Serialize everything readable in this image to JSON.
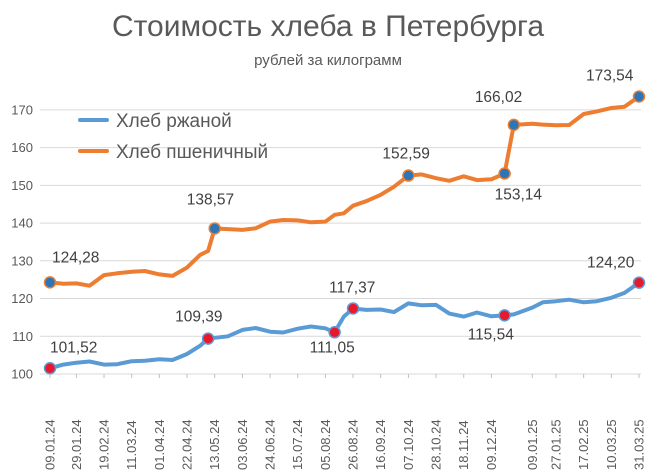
{
  "chart_data": {
    "type": "line",
    "title": "Стоимость хлеба в Петербурга",
    "subtitle": "рублей за килограмм",
    "xlabel": "",
    "ylabel": "",
    "ylim": [
      100,
      175
    ],
    "yticks": [
      100,
      110,
      120,
      130,
      140,
      150,
      160,
      170
    ],
    "grid": true,
    "legend_position": "top-left",
    "x_tick_labels": [
      "09.01.24",
      "29.01.24",
      "19.02.24",
      "11.03.24",
      "01.04.24",
      "22.04.24",
      "13.05.24",
      "03.06.24",
      "24.06.24",
      "15.07.24",
      "05.08.24",
      "26.08.24",
      "16.09.24",
      "07.10.24",
      "28.10.24",
      "18.11.24",
      "09.12.24",
      "09.01.25",
      "27.01.25",
      "17.02.25",
      "10.03.25",
      "31.03.25"
    ],
    "series": [
      {
        "name": "Хлеб ржаной",
        "color": "#5b9bd5",
        "points": [
          {
            "x": "09.01.24",
            "y": 101.52
          },
          {
            "x": "19.01.24",
            "y": 102.5
          },
          {
            "x": "29.01.24",
            "y": 103.0
          },
          {
            "x": "08.02.24",
            "y": 103.3
          },
          {
            "x": "19.02.24",
            "y": 102.5
          },
          {
            "x": "29.02.24",
            "y": 102.6
          },
          {
            "x": "11.03.24",
            "y": 103.4
          },
          {
            "x": "21.03.24",
            "y": 103.5
          },
          {
            "x": "01.04.24",
            "y": 103.9
          },
          {
            "x": "11.04.24",
            "y": 103.7
          },
          {
            "x": "22.04.24",
            "y": 105.3
          },
          {
            "x": "02.05.24",
            "y": 107.5
          },
          {
            "x": "08.05.24",
            "y": 109.39
          },
          {
            "x": "13.05.24",
            "y": 109.6
          },
          {
            "x": "23.05.24",
            "y": 110.0
          },
          {
            "x": "03.06.24",
            "y": 111.7
          },
          {
            "x": "13.06.24",
            "y": 112.2
          },
          {
            "x": "24.06.24",
            "y": 111.2
          },
          {
            "x": "04.07.24",
            "y": 111.0
          },
          {
            "x": "15.07.24",
            "y": 112.0
          },
          {
            "x": "25.07.24",
            "y": 112.6
          },
          {
            "x": "05.08.24",
            "y": 112.1
          },
          {
            "x": "12.08.24",
            "y": 111.05
          },
          {
            "x": "19.08.24",
            "y": 115.2
          },
          {
            "x": "26.08.24",
            "y": 117.37
          },
          {
            "x": "05.09.24",
            "y": 117.0
          },
          {
            "x": "16.09.24",
            "y": 117.1
          },
          {
            "x": "26.09.24",
            "y": 116.4
          },
          {
            "x": "07.10.24",
            "y": 118.7
          },
          {
            "x": "17.10.24",
            "y": 118.2
          },
          {
            "x": "28.10.24",
            "y": 118.3
          },
          {
            "x": "07.11.24",
            "y": 116.0
          },
          {
            "x": "18.11.24",
            "y": 115.2
          },
          {
            "x": "28.11.24",
            "y": 116.3
          },
          {
            "x": "09.12.24",
            "y": 115.3
          },
          {
            "x": "19.12.24",
            "y": 115.54
          },
          {
            "x": "26.12.24",
            "y": 115.8
          },
          {
            "x": "09.01.25",
            "y": 117.6
          },
          {
            "x": "17.01.25",
            "y": 119.0
          },
          {
            "x": "27.01.25",
            "y": 119.3
          },
          {
            "x": "06.02.25",
            "y": 119.7
          },
          {
            "x": "17.02.25",
            "y": 119.0
          },
          {
            "x": "27.02.25",
            "y": 119.3
          },
          {
            "x": "10.03.25",
            "y": 120.2
          },
          {
            "x": "20.03.25",
            "y": 121.5
          },
          {
            "x": "31.03.25",
            "y": 124.2
          }
        ]
      },
      {
        "name": "Хлеб пшеничный",
        "color": "#ed7d31",
        "points": [
          {
            "x": "09.01.24",
            "y": 124.28
          },
          {
            "x": "19.01.24",
            "y": 123.9
          },
          {
            "x": "29.01.24",
            "y": 124.0
          },
          {
            "x": "08.02.24",
            "y": 123.4
          },
          {
            "x": "19.02.24",
            "y": 126.2
          },
          {
            "x": "29.02.24",
            "y": 126.7
          },
          {
            "x": "11.03.24",
            "y": 127.1
          },
          {
            "x": "21.03.24",
            "y": 127.3
          },
          {
            "x": "01.04.24",
            "y": 126.4
          },
          {
            "x": "11.04.24",
            "y": 126.0
          },
          {
            "x": "22.04.24",
            "y": 128.2
          },
          {
            "x": "02.05.24",
            "y": 131.6
          },
          {
            "x": "08.05.24",
            "y": 132.6
          },
          {
            "x": "13.05.24",
            "y": 138.57
          },
          {
            "x": "23.05.24",
            "y": 138.4
          },
          {
            "x": "03.06.24",
            "y": 138.2
          },
          {
            "x": "13.06.24",
            "y": 138.6
          },
          {
            "x": "24.06.24",
            "y": 140.4
          },
          {
            "x": "04.07.24",
            "y": 140.8
          },
          {
            "x": "15.07.24",
            "y": 140.7
          },
          {
            "x": "25.07.24",
            "y": 140.2
          },
          {
            "x": "05.08.24",
            "y": 140.4
          },
          {
            "x": "12.08.24",
            "y": 142.2
          },
          {
            "x": "19.08.24",
            "y": 142.6
          },
          {
            "x": "26.08.24",
            "y": 144.6
          },
          {
            "x": "05.09.24",
            "y": 145.8
          },
          {
            "x": "16.09.24",
            "y": 147.5
          },
          {
            "x": "26.09.24",
            "y": 149.6
          },
          {
            "x": "07.10.24",
            "y": 152.59
          },
          {
            "x": "17.10.24",
            "y": 152.9
          },
          {
            "x": "28.10.24",
            "y": 151.9
          },
          {
            "x": "07.11.24",
            "y": 151.2
          },
          {
            "x": "18.11.24",
            "y": 152.4
          },
          {
            "x": "28.11.24",
            "y": 151.4
          },
          {
            "x": "09.12.24",
            "y": 151.6
          },
          {
            "x": "19.12.24",
            "y": 153.14
          },
          {
            "x": "26.12.24",
            "y": 166.02
          },
          {
            "x": "09.01.25",
            "y": 166.3
          },
          {
            "x": "17.01.25",
            "y": 166.1
          },
          {
            "x": "27.01.25",
            "y": 165.9
          },
          {
            "x": "06.02.25",
            "y": 166.0
          },
          {
            "x": "17.02.25",
            "y": 168.9
          },
          {
            "x": "27.02.25",
            "y": 169.6
          },
          {
            "x": "10.03.25",
            "y": 170.5
          },
          {
            "x": "20.03.25",
            "y": 170.8
          },
          {
            "x": "31.03.25",
            "y": 173.54
          }
        ]
      }
    ],
    "annotations": [
      {
        "series": "Хлеб ржаной",
        "x": "09.01.24",
        "label": "101,52",
        "marker_color": "#e8192c"
      },
      {
        "series": "Хлеб ржаной",
        "x": "08.05.24",
        "label": "109,39",
        "marker_color": "#e8192c"
      },
      {
        "series": "Хлеб ржаной",
        "x": "12.08.24",
        "label": "111,05",
        "marker_color": "#e8192c"
      },
      {
        "series": "Хлеб ржаной",
        "x": "26.08.24",
        "label": "117,37",
        "marker_color": "#e8192c"
      },
      {
        "series": "Хлеб ржаной",
        "x": "19.12.24",
        "label": "115,54",
        "marker_color": "#e8192c"
      },
      {
        "series": "Хлеб ржаной",
        "x": "31.03.25",
        "label": "124,20",
        "marker_color": "#e8192c"
      },
      {
        "series": "Хлеб пшеничный",
        "x": "09.01.24",
        "label": "124,28",
        "marker_color": "#2e75b6"
      },
      {
        "series": "Хлеб пшеничный",
        "x": "13.05.24",
        "label": "138,57",
        "marker_color": "#2e75b6"
      },
      {
        "series": "Хлеб пшеничный",
        "x": "07.10.24",
        "label": "152,59",
        "marker_color": "#2e75b6"
      },
      {
        "series": "Хлеб пшеничный",
        "x": "19.12.24",
        "label": "153,14",
        "marker_color": "#2e75b6"
      },
      {
        "series": "Хлеб пшеничный",
        "x": "26.12.24",
        "label": "166,02",
        "marker_color": "#2e75b6"
      },
      {
        "series": "Хлеб пшеничный",
        "x": "31.03.25",
        "label": "173,54",
        "marker_color": "#2e75b6"
      }
    ]
  }
}
